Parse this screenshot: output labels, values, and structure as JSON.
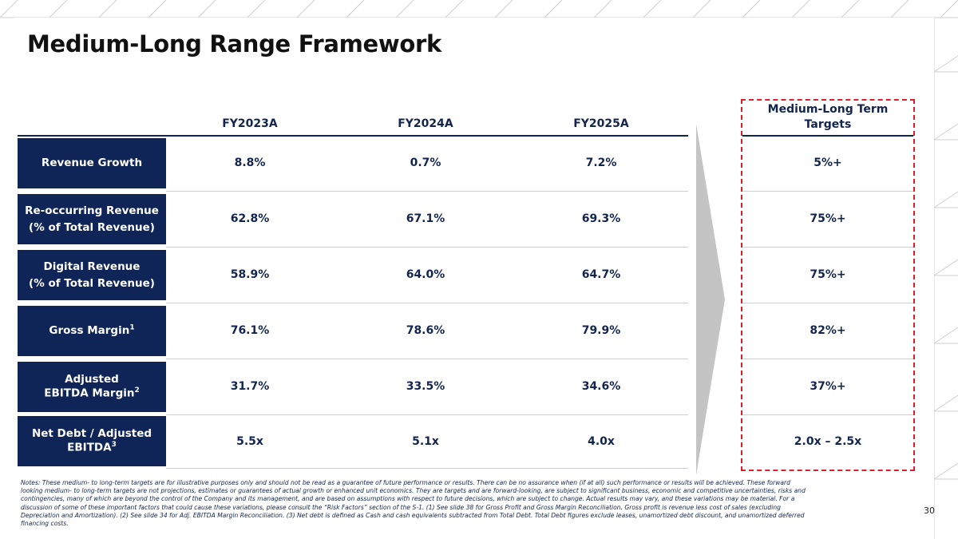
{
  "page": {
    "title": "Medium-Long Range Framework",
    "page_number": "30"
  },
  "columns": {
    "fy2023": "FY2023A",
    "fy2024": "FY2024A",
    "fy2025": "FY2025A",
    "target_line1": "Medium-Long Term",
    "target_line2": "Targets"
  },
  "rows": [
    {
      "label_line1": "Revenue Growth",
      "label_line2": "",
      "sup": "",
      "fy2023": "8.8%",
      "fy2024": "0.7%",
      "fy2025": "7.2%",
      "target": "5%+"
    },
    {
      "label_line1": "Re-occurring Revenue",
      "label_line2": "(% of Total Revenue)",
      "sup": "",
      "fy2023": "62.8%",
      "fy2024": "67.1%",
      "fy2025": "69.3%",
      "target": "75%+"
    },
    {
      "label_line1": "Digital Revenue",
      "label_line2": "(% of Total Revenue)",
      "sup": "",
      "fy2023": "58.9%",
      "fy2024": "64.0%",
      "fy2025": "64.7%",
      "target": "75%+"
    },
    {
      "label_line1": "Gross Margin",
      "label_line2": "",
      "sup": "1",
      "fy2023": "76.1%",
      "fy2024": "78.6%",
      "fy2025": "79.9%",
      "target": "82%+"
    },
    {
      "label_line1": "Adjusted",
      "label_line2": "EBITDA Margin",
      "sup": "2",
      "fy2023": "31.7%",
      "fy2024": "33.5%",
      "fy2025": "34.6%",
      "target": "37%+"
    },
    {
      "label_line1": "Net Debt / Adjusted",
      "label_line2": "EBITDA",
      "sup": "3",
      "fy2023": "5.5x",
      "fy2024": "5.1x",
      "fy2025": "4.0x",
      "target": "2.0x – 2.5x"
    }
  ],
  "notes": "Notes: These medium- to long-term targets are for illustrative purposes only and should not be read as a guarantee of future performance or results. There can be no assurance when (if at all) such performance or results will be achieved. These forward looking medium- to long-term targets are not projections, estimates or guarantees of actual growth or enhanced unit economics. They are targets and are forward-looking, are subject to significant business, economic and competitive uncertainties, risks and contingencies, many of which are beyond the control of the Company and its management, and are based on assumptions with respect to future decisions, which are subject to change. Actual results may vary, and these variations may be material. For a discussion of some of these important factors that could cause these variations, please consult the “Risk Factors” section of the S-1. (1) See slide 38 for Gross Profit and Gross Margin Reconciliation. Gross profit is revenue less cost of sales (excluding Depreciation and Amortization). (2) See slide 34 for Adj. EBITDA Margin Reconciliation. (3) Net debt is defined as Cash and cash equivalents subtracted from Total Debt. Total Debt figures exclude leases, unamortized debt discount, and unamortized deferred financing costs.",
  "colors": {
    "navy": "#0f2457",
    "text_navy": "#13254f",
    "dashed_red": "#e11d2b",
    "arrow_grey": "#c4c4c4"
  }
}
